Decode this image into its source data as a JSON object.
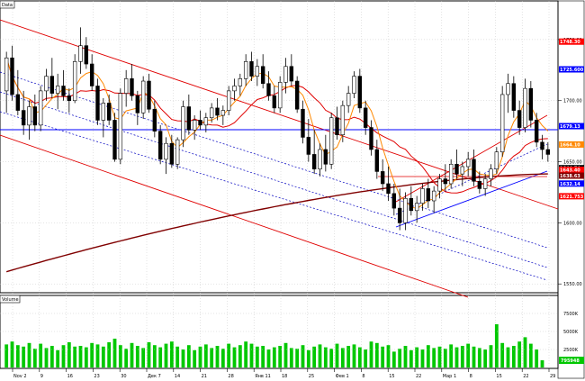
{
  "chart_data": {
    "type": "candlestick",
    "panes": [
      {
        "title": "Data",
        "kind": "price"
      },
      {
        "title": "Volume",
        "kind": "volume"
      }
    ],
    "price_axis": {
      "ticks": [
        "1750.00",
        "1700.00",
        "1650.00",
        "1600.00",
        "1550.00"
      ],
      "ylim": [
        1545,
        1775
      ],
      "markers": [
        {
          "label": "1748.30",
          "value": 1748.3,
          "color": "#ff0000"
        },
        {
          "label": "1725.600",
          "value": 1725.6,
          "color": "#0000ff"
        },
        {
          "label": "1679.13",
          "value": 1679.13,
          "color": "#0000ff"
        },
        {
          "label": "1664.10",
          "value": 1664.1,
          "color": "#ff8800"
        },
        {
          "label": "1644.74",
          "value": 1644.74,
          "color": "#000000"
        },
        {
          "label": "1643.40",
          "value": 1643.4,
          "color": "#ff0000"
        },
        {
          "label": "1638.63",
          "value": 1638.63,
          "color": "#800000"
        },
        {
          "label": "1632.14",
          "value": 1632.14,
          "color": "#0000ff"
        },
        {
          "label": "1621.753",
          "value": 1621.753,
          "color": "#ff0000"
        }
      ]
    },
    "volume_axis": {
      "ticks": [
        "7500K",
        "5000K",
        "2500K"
      ],
      "ylim": [
        0,
        8500000
      ],
      "last_label": "795948"
    },
    "x_ticks": [
      "Nov 2",
      "9",
      "16",
      "23",
      "30",
      "Дек 7",
      "14",
      "21",
      "28",
      "Янв 11",
      "18",
      "25",
      "Фев 1",
      "8",
      "15",
      "22",
      "Мар 1",
      "8",
      "15",
      "22",
      "29"
    ],
    "candles": [
      {
        "o": 1708,
        "h": 1740,
        "l": 1690,
        "c": 1735
      },
      {
        "o": 1735,
        "h": 1745,
        "l": 1700,
        "c": 1705
      },
      {
        "o": 1705,
        "h": 1725,
        "l": 1688,
        "c": 1692
      },
      {
        "o": 1692,
        "h": 1708,
        "l": 1672,
        "c": 1680
      },
      {
        "o": 1680,
        "h": 1700,
        "l": 1668,
        "c": 1695
      },
      {
        "o": 1695,
        "h": 1705,
        "l": 1675,
        "c": 1680
      },
      {
        "o": 1680,
        "h": 1712,
        "l": 1675,
        "c": 1708
      },
      {
        "o": 1708,
        "h": 1726,
        "l": 1700,
        "c": 1720
      },
      {
        "o": 1720,
        "h": 1735,
        "l": 1702,
        "c": 1706
      },
      {
        "o": 1706,
        "h": 1722,
        "l": 1693,
        "c": 1712
      },
      {
        "o": 1712,
        "h": 1725,
        "l": 1700,
        "c": 1704
      },
      {
        "o": 1704,
        "h": 1710,
        "l": 1690,
        "c": 1700
      },
      {
        "o": 1700,
        "h": 1738,
        "l": 1698,
        "c": 1732
      },
      {
        "o": 1732,
        "h": 1760,
        "l": 1722,
        "c": 1745
      },
      {
        "o": 1745,
        "h": 1752,
        "l": 1726,
        "c": 1730
      },
      {
        "o": 1730,
        "h": 1738,
        "l": 1708,
        "c": 1712
      },
      {
        "o": 1712,
        "h": 1718,
        "l": 1680,
        "c": 1684
      },
      {
        "o": 1684,
        "h": 1702,
        "l": 1670,
        "c": 1698
      },
      {
        "o": 1698,
        "h": 1705,
        "l": 1680,
        "c": 1684
      },
      {
        "o": 1684,
        "h": 1690,
        "l": 1650,
        "c": 1652
      },
      {
        "o": 1652,
        "h": 1710,
        "l": 1648,
        "c": 1706
      },
      {
        "o": 1706,
        "h": 1725,
        "l": 1695,
        "c": 1718
      },
      {
        "o": 1718,
        "h": 1730,
        "l": 1700,
        "c": 1704
      },
      {
        "o": 1704,
        "h": 1708,
        "l": 1680,
        "c": 1690
      },
      {
        "o": 1690,
        "h": 1720,
        "l": 1685,
        "c": 1716
      },
      {
        "o": 1716,
        "h": 1722,
        "l": 1690,
        "c": 1693
      },
      {
        "o": 1693,
        "h": 1700,
        "l": 1670,
        "c": 1675
      },
      {
        "o": 1675,
        "h": 1680,
        "l": 1648,
        "c": 1652
      },
      {
        "o": 1652,
        "h": 1670,
        "l": 1640,
        "c": 1665
      },
      {
        "o": 1665,
        "h": 1672,
        "l": 1645,
        "c": 1648
      },
      {
        "o": 1648,
        "h": 1670,
        "l": 1644,
        "c": 1668
      },
      {
        "o": 1668,
        "h": 1700,
        "l": 1662,
        "c": 1695
      },
      {
        "o": 1695,
        "h": 1705,
        "l": 1672,
        "c": 1676
      },
      {
        "o": 1676,
        "h": 1688,
        "l": 1668,
        "c": 1684
      },
      {
        "o": 1684,
        "h": 1692,
        "l": 1676,
        "c": 1680
      },
      {
        "o": 1680,
        "h": 1690,
        "l": 1674,
        "c": 1686
      },
      {
        "o": 1686,
        "h": 1698,
        "l": 1682,
        "c": 1694
      },
      {
        "o": 1694,
        "h": 1702,
        "l": 1684,
        "c": 1688
      },
      {
        "o": 1688,
        "h": 1696,
        "l": 1680,
        "c": 1692
      },
      {
        "o": 1692,
        "h": 1712,
        "l": 1688,
        "c": 1708
      },
      {
        "o": 1708,
        "h": 1718,
        "l": 1700,
        "c": 1712
      },
      {
        "o": 1712,
        "h": 1722,
        "l": 1704,
        "c": 1718
      },
      {
        "o": 1718,
        "h": 1738,
        "l": 1712,
        "c": 1732
      },
      {
        "o": 1732,
        "h": 1740,
        "l": 1716,
        "c": 1720
      },
      {
        "o": 1720,
        "h": 1734,
        "l": 1712,
        "c": 1728
      },
      {
        "o": 1728,
        "h": 1738,
        "l": 1710,
        "c": 1714
      },
      {
        "o": 1714,
        "h": 1724,
        "l": 1700,
        "c": 1704
      },
      {
        "o": 1704,
        "h": 1712,
        "l": 1690,
        "c": 1694
      },
      {
        "o": 1694,
        "h": 1720,
        "l": 1690,
        "c": 1715
      },
      {
        "o": 1715,
        "h": 1735,
        "l": 1706,
        "c": 1728
      },
      {
        "o": 1728,
        "h": 1738,
        "l": 1712,
        "c": 1716
      },
      {
        "o": 1716,
        "h": 1720,
        "l": 1690,
        "c": 1693
      },
      {
        "o": 1693,
        "h": 1700,
        "l": 1665,
        "c": 1670
      },
      {
        "o": 1670,
        "h": 1685,
        "l": 1650,
        "c": 1656
      },
      {
        "o": 1656,
        "h": 1676,
        "l": 1640,
        "c": 1644
      },
      {
        "o": 1644,
        "h": 1665,
        "l": 1638,
        "c": 1660
      },
      {
        "o": 1660,
        "h": 1672,
        "l": 1642,
        "c": 1648
      },
      {
        "o": 1648,
        "h": 1690,
        "l": 1644,
        "c": 1686
      },
      {
        "o": 1686,
        "h": 1695,
        "l": 1668,
        "c": 1672
      },
      {
        "o": 1672,
        "h": 1700,
        "l": 1666,
        "c": 1696
      },
      {
        "o": 1696,
        "h": 1712,
        "l": 1690,
        "c": 1706
      },
      {
        "o": 1706,
        "h": 1724,
        "l": 1702,
        "c": 1720
      },
      {
        "o": 1720,
        "h": 1726,
        "l": 1690,
        "c": 1694
      },
      {
        "o": 1694,
        "h": 1700,
        "l": 1672,
        "c": 1678
      },
      {
        "o": 1678,
        "h": 1684,
        "l": 1655,
        "c": 1660
      },
      {
        "o": 1660,
        "h": 1668,
        "l": 1636,
        "c": 1642
      },
      {
        "o": 1642,
        "h": 1652,
        "l": 1626,
        "c": 1632
      },
      {
        "o": 1632,
        "h": 1646,
        "l": 1618,
        "c": 1624
      },
      {
        "o": 1624,
        "h": 1632,
        "l": 1606,
        "c": 1612
      },
      {
        "o": 1612,
        "h": 1628,
        "l": 1594,
        "c": 1600
      },
      {
        "o": 1600,
        "h": 1625,
        "l": 1594,
        "c": 1620
      },
      {
        "o": 1620,
        "h": 1630,
        "l": 1606,
        "c": 1610
      },
      {
        "o": 1610,
        "h": 1622,
        "l": 1600,
        "c": 1616
      },
      {
        "o": 1616,
        "h": 1632,
        "l": 1610,
        "c": 1628
      },
      {
        "o": 1628,
        "h": 1636,
        "l": 1612,
        "c": 1618
      },
      {
        "o": 1618,
        "h": 1630,
        "l": 1608,
        "c": 1626
      },
      {
        "o": 1626,
        "h": 1640,
        "l": 1620,
        "c": 1636
      },
      {
        "o": 1636,
        "h": 1648,
        "l": 1626,
        "c": 1632
      },
      {
        "o": 1632,
        "h": 1652,
        "l": 1628,
        "c": 1648
      },
      {
        "o": 1648,
        "h": 1660,
        "l": 1636,
        "c": 1640
      },
      {
        "o": 1640,
        "h": 1650,
        "l": 1630,
        "c": 1646
      },
      {
        "o": 1646,
        "h": 1658,
        "l": 1638,
        "c": 1652
      },
      {
        "o": 1652,
        "h": 1660,
        "l": 1630,
        "c": 1634
      },
      {
        "o": 1634,
        "h": 1642,
        "l": 1624,
        "c": 1628
      },
      {
        "o": 1628,
        "h": 1640,
        "l": 1622,
        "c": 1636
      },
      {
        "o": 1636,
        "h": 1648,
        "l": 1630,
        "c": 1644
      },
      {
        "o": 1644,
        "h": 1662,
        "l": 1640,
        "c": 1658
      },
      {
        "o": 1658,
        "h": 1712,
        "l": 1654,
        "c": 1705
      },
      {
        "o": 1705,
        "h": 1722,
        "l": 1690,
        "c": 1714
      },
      {
        "o": 1714,
        "h": 1720,
        "l": 1686,
        "c": 1692
      },
      {
        "o": 1692,
        "h": 1700,
        "l": 1672,
        "c": 1678
      },
      {
        "o": 1678,
        "h": 1718,
        "l": 1674,
        "c": 1710
      },
      {
        "o": 1710,
        "h": 1716,
        "l": 1678,
        "c": 1684
      },
      {
        "o": 1684,
        "h": 1690,
        "l": 1662,
        "c": 1666
      },
      {
        "o": 1666,
        "h": 1672,
        "l": 1652,
        "c": 1660
      },
      {
        "o": 1660,
        "h": 1666,
        "l": 1650,
        "c": 1656
      }
    ],
    "volumes": [
      3.2,
      3.6,
      3.1,
      2.9,
      3.4,
      2.6,
      3.3,
      2.7,
      3.0,
      2.4,
      3.1,
      3.5,
      2.9,
      3.0,
      2.8,
      3.4,
      3.2,
      2.9,
      3.5,
      4.0,
      3.1,
      2.6,
      3.4,
      3.0,
      2.7,
      3.5,
      3.1,
      2.8,
      3.3,
      3.6,
      2.9,
      2.5,
      3.1,
      2.4,
      2.9,
      3.2,
      2.7,
      3.0,
      2.6,
      3.3,
      2.8,
      3.1,
      3.6,
      3.3,
      2.9,
      3.0,
      2.5,
      2.8,
      3.0,
      3.4,
      2.7,
      2.6,
      3.1,
      2.4,
      2.9,
      3.2,
      2.8,
      2.6,
      3.3,
      2.7,
      3.0,
      3.2,
      2.8,
      2.5,
      3.6,
      3.4,
      2.9,
      3.1,
      2.2,
      2.6,
      3.0,
      2.4,
      2.8,
      2.5,
      3.1,
      2.7,
      2.9,
      2.6,
      3.2,
      2.8,
      3.0,
      3.3,
      2.9,
      2.7,
      2.5,
      3.1,
      6.0,
      3.4,
      2.8,
      3.0,
      3.6,
      4.2,
      3.3,
      2.5,
      1.0
    ]
  }
}
